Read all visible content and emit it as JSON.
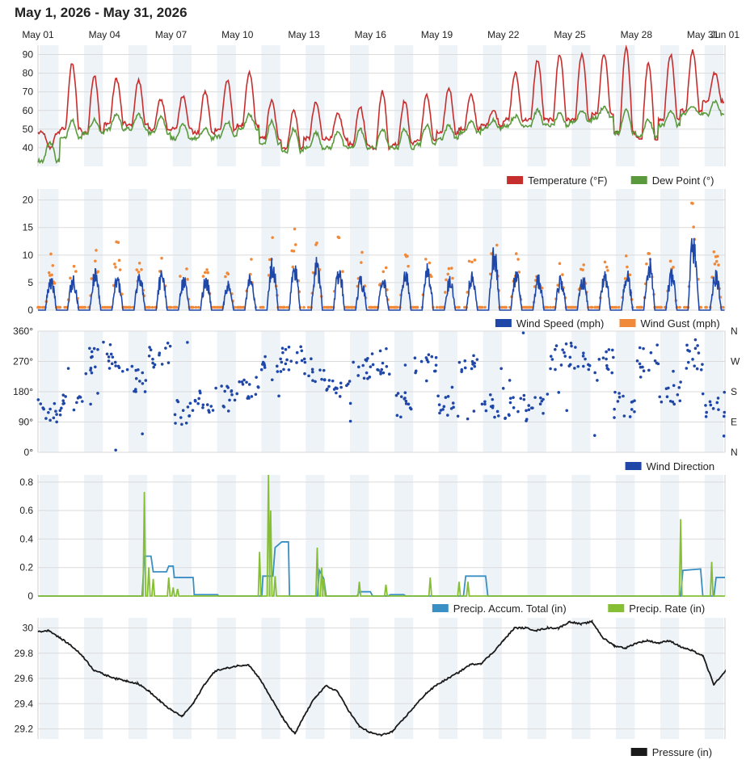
{
  "page": {
    "title": "May 1, 2026 - May 31, 2026"
  },
  "date_ticks": [
    "May 01",
    "May 04",
    "May 07",
    "May 10",
    "May 13",
    "May 16",
    "May 19",
    "May 22",
    "May 25",
    "May 28",
    "May 31",
    "Jun 01"
  ],
  "chart_data": [
    {
      "id": "temperature",
      "type": "line",
      "x_range_days": [
        0,
        31
      ],
      "ylim": [
        30,
        95
      ],
      "yticks": [
        40,
        50,
        60,
        70,
        80,
        90
      ],
      "series": [
        {
          "name": "Temperature (°F)",
          "color": "#c62e2e",
          "daily_high": [
            40,
            85,
            79,
            77,
            76,
            66,
            68,
            70,
            76,
            80,
            65,
            60,
            64,
            58,
            62,
            70,
            65,
            68,
            72,
            68,
            60,
            80,
            87,
            90,
            90,
            90,
            94,
            85,
            90,
            92,
            80
          ],
          "daily_low": [
            48,
            50,
            48,
            53,
            52,
            50,
            50,
            48,
            50,
            52,
            45,
            40,
            45,
            45,
            42,
            40,
            42,
            44,
            48,
            50,
            52,
            55,
            55,
            55,
            55,
            58,
            48,
            45,
            55,
            60,
            65
          ]
        },
        {
          "name": "Dew Point (°)",
          "color": "#5a9a3c",
          "daily_high": [
            43,
            55,
            55,
            58,
            58,
            57,
            52,
            50,
            54,
            58,
            54,
            50,
            48,
            49,
            50,
            50,
            50,
            52,
            52,
            54,
            55,
            57,
            60,
            58,
            60,
            62,
            60,
            55,
            60,
            62,
            65
          ],
          "daily_low": [
            33,
            45,
            48,
            50,
            50,
            48,
            45,
            45,
            46,
            50,
            42,
            38,
            40,
            40,
            40,
            40,
            40,
            42,
            45,
            48,
            50,
            52,
            52,
            52,
            54,
            56,
            48,
            46,
            52,
            58,
            58
          ]
        }
      ]
    },
    {
      "id": "wind",
      "type": "line",
      "x_range_days": [
        0,
        31
      ],
      "ylim": [
        0,
        22
      ],
      "yticks": [
        0,
        5,
        10,
        15,
        20
      ],
      "series": [
        {
          "name": "Wind Speed (mph)",
          "color": "#1f47a8",
          "daily_peak": [
            6,
            6,
            7,
            6,
            7,
            7,
            6,
            6,
            5,
            6,
            9,
            8,
            9,
            8,
            6,
            6,
            7,
            8,
            6,
            7,
            11,
            7,
            6,
            6,
            6,
            7,
            7,
            9,
            7,
            14,
            7
          ]
        },
        {
          "name": "Wind Gust (mph)",
          "color": "#f08a3a",
          "daily_peak": [
            10,
            10,
            12,
            12,
            10,
            10,
            12,
            10,
            8,
            9,
            12,
            14,
            15,
            13,
            10,
            10,
            12,
            13,
            12,
            12,
            16,
            10,
            8,
            8,
            8,
            10,
            10,
            12,
            11,
            22,
            12
          ]
        }
      ]
    },
    {
      "id": "direction",
      "type": "scatter",
      "x_range_days": [
        0,
        31
      ],
      "ylim": [
        0,
        360
      ],
      "yticks": [
        0,
        90,
        180,
        270,
        360
      ],
      "ytick_labels": [
        "0°",
        "90°",
        "180°",
        "270°",
        "360°"
      ],
      "right_labels": [
        "N",
        "E",
        "S",
        "W",
        "N"
      ],
      "series": [
        {
          "name": "Wind Direction",
          "color": "#1f47a8",
          "daily_center": [
            125,
            135,
            270,
            280,
            220,
            290,
            120,
            150,
            160,
            200,
            250,
            280,
            250,
            180,
            240,
            270,
            140,
            250,
            140,
            270,
            120,
            140,
            130,
            285,
            280,
            270,
            140,
            280,
            170,
            280,
            140
          ]
        }
      ]
    },
    {
      "id": "precip",
      "type": "line",
      "x_range_days": [
        0,
        31
      ],
      "ylim": [
        0,
        0.85
      ],
      "yticks": [
        0,
        0.2,
        0.4,
        0.6,
        0.8
      ],
      "series": [
        {
          "name": "Precip. Accum. Total (in)",
          "color": "#3a8fc4",
          "points": [
            [
              0,
              0
            ],
            [
              4.7,
              0
            ],
            [
              4.8,
              0.28
            ],
            [
              5.1,
              0.28
            ],
            [
              5.2,
              0.17
            ],
            [
              5.8,
              0.17
            ],
            [
              5.9,
              0.21
            ],
            [
              6.1,
              0.21
            ],
            [
              6.15,
              0.13
            ],
            [
              7.0,
              0.13
            ],
            [
              7.05,
              0.01
            ],
            [
              8.1,
              0.01
            ],
            [
              8.15,
              0
            ],
            [
              10.1,
              0
            ],
            [
              10.15,
              0.14
            ],
            [
              10.6,
              0.14
            ],
            [
              10.7,
              0.34
            ],
            [
              11.0,
              0.38
            ],
            [
              11.3,
              0.38
            ],
            [
              11.35,
              0
            ],
            [
              12.6,
              0
            ],
            [
              12.7,
              0.18
            ],
            [
              12.9,
              0.12
            ],
            [
              13.0,
              0
            ],
            [
              14.4,
              0
            ],
            [
              14.5,
              0.03
            ],
            [
              15.0,
              0.03
            ],
            [
              15.1,
              0
            ],
            [
              15.8,
              0
            ],
            [
              15.9,
              0.01
            ],
            [
              16.5,
              0.01
            ],
            [
              16.6,
              0
            ],
            [
              19.2,
              0
            ],
            [
              19.3,
              0.14
            ],
            [
              20.2,
              0.14
            ],
            [
              20.3,
              0
            ],
            [
              29.0,
              0
            ],
            [
              29.1,
              0.18
            ],
            [
              29.9,
              0.19
            ],
            [
              30.0,
              0
            ],
            [
              30.5,
              0
            ],
            [
              30.6,
              0.13
            ],
            [
              31,
              0.13
            ]
          ]
        },
        {
          "name": "Precip. Rate (in)",
          "color": "#86bf34",
          "spikes": [
            [
              4.8,
              0.73
            ],
            [
              5.0,
              0.2
            ],
            [
              5.2,
              0.12
            ],
            [
              5.9,
              0.13
            ],
            [
              6.1,
              0.06
            ],
            [
              6.3,
              0.05
            ],
            [
              10.0,
              0.31
            ],
            [
              10.4,
              0.9
            ],
            [
              10.5,
              0.6
            ],
            [
              10.7,
              0.14
            ],
            [
              12.6,
              0.34
            ],
            [
              12.8,
              0.2
            ],
            [
              12.9,
              0.12
            ],
            [
              14.5,
              0.1
            ],
            [
              15.7,
              0.08
            ],
            [
              17.7,
              0.13
            ],
            [
              19.0,
              0.1
            ],
            [
              19.4,
              0.1
            ],
            [
              29.0,
              0.54
            ],
            [
              30.4,
              0.24
            ]
          ]
        }
      ]
    },
    {
      "id": "pressure",
      "type": "line",
      "x_range_days": [
        0,
        31
      ],
      "ylim": [
        29.12,
        30.08
      ],
      "yticks": [
        29.2,
        29.4,
        29.6,
        29.8,
        30.0
      ],
      "series": [
        {
          "name": "Pressure (in)",
          "color": "#1a1a1a",
          "points": [
            [
              0,
              29.97
            ],
            [
              0.5,
              29.98
            ],
            [
              1,
              29.92
            ],
            [
              1.5,
              29.86
            ],
            [
              2,
              29.78
            ],
            [
              2.5,
              29.67
            ],
            [
              3,
              29.63
            ],
            [
              3.5,
              29.6
            ],
            [
              4,
              29.58
            ],
            [
              4.5,
              29.56
            ],
            [
              5,
              29.5
            ],
            [
              5.5,
              29.42
            ],
            [
              6,
              29.35
            ],
            [
              6.5,
              29.3
            ],
            [
              7,
              29.4
            ],
            [
              7.5,
              29.55
            ],
            [
              8,
              29.66
            ],
            [
              8.5,
              29.68
            ],
            [
              9,
              29.7
            ],
            [
              9.5,
              29.71
            ],
            [
              10,
              29.6
            ],
            [
              10.5,
              29.45
            ],
            [
              11,
              29.3
            ],
            [
              11.3,
              29.22
            ],
            [
              11.6,
              29.16
            ],
            [
              12,
              29.3
            ],
            [
              12.5,
              29.45
            ],
            [
              13,
              29.54
            ],
            [
              13.5,
              29.5
            ],
            [
              14,
              29.35
            ],
            [
              14.5,
              29.22
            ],
            [
              15,
              29.17
            ],
            [
              15.5,
              29.15
            ],
            [
              16,
              29.18
            ],
            [
              16.5,
              29.28
            ],
            [
              17,
              29.38
            ],
            [
              17.5,
              29.48
            ],
            [
              18,
              29.55
            ],
            [
              18.5,
              29.6
            ],
            [
              19,
              29.65
            ],
            [
              19.5,
              29.71
            ],
            [
              20,
              29.72
            ],
            [
              20.5,
              29.8
            ],
            [
              21,
              29.9
            ],
            [
              21.5,
              30.0
            ],
            [
              22,
              30.0
            ],
            [
              22.5,
              29.98
            ],
            [
              23,
              30.0
            ],
            [
              23.5,
              30.0
            ],
            [
              24,
              30.05
            ],
            [
              24.5,
              30.03
            ],
            [
              25,
              30.05
            ],
            [
              25.5,
              29.92
            ],
            [
              26,
              29.86
            ],
            [
              26.5,
              29.84
            ],
            [
              27,
              29.88
            ],
            [
              27.5,
              29.9
            ],
            [
              28,
              29.88
            ],
            [
              28.5,
              29.9
            ],
            [
              29,
              29.85
            ],
            [
              29.5,
              29.82
            ],
            [
              30,
              29.78
            ],
            [
              30.5,
              29.55
            ],
            [
              31,
              29.65
            ]
          ]
        }
      ]
    }
  ]
}
